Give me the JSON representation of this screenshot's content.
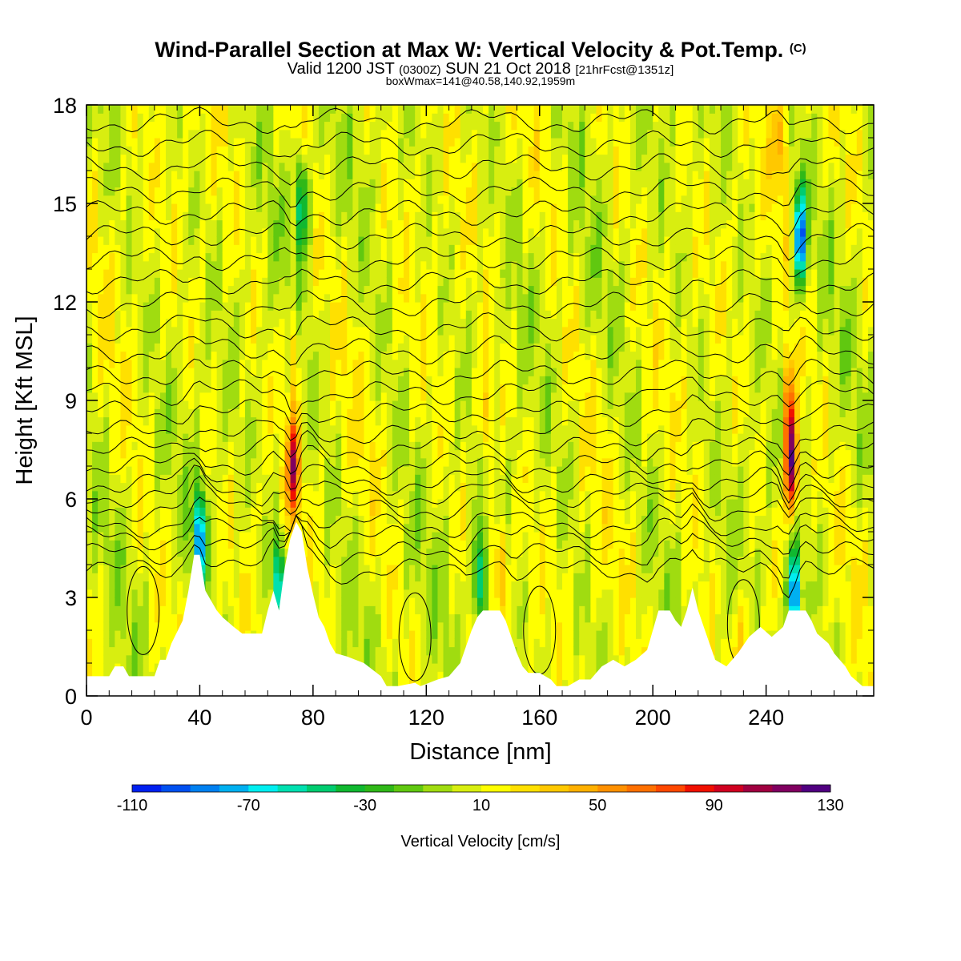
{
  "title": {
    "main": "Wind-Parallel Section at Max W: Vertical Velocity & Pot.Temp.",
    "copyright": "(C)",
    "line2_part1": "Valid 1200 JST",
    "line2_zulu": "(0300Z)",
    "line2_part2": "SUN 21 Oct 2018",
    "line2_fcst": "[21hrFcst@1351z]",
    "line3": "boxWmax=141@40.58,140.92,1959m"
  },
  "chart_data": {
    "type": "heatmap",
    "xlabel": "Distance [nm]",
    "ylabel": "Height [Kft MSL]",
    "xlim": [
      0,
      278
    ],
    "ylim": [
      0,
      18
    ],
    "x_ticks": [
      0,
      40,
      80,
      120,
      160,
      200,
      240
    ],
    "y_ticks": [
      0,
      3,
      6,
      9,
      12,
      15,
      18
    ],
    "colorbar": {
      "label": "Vertical Velocity [cm/s]",
      "min": -110,
      "max": 130,
      "step": 10,
      "tick_labels": [
        "-110",
        "-70",
        "-30",
        "10",
        "50",
        "90",
        "130"
      ],
      "colors": [
        "#0020f0",
        "#0050f0",
        "#0080f0",
        "#00b0f0",
        "#00eef0",
        "#00e0b0",
        "#00cc70",
        "#10b830",
        "#30b818",
        "#60c810",
        "#a0dc10",
        "#d8ee10",
        "#ffff00",
        "#ffe000",
        "#ffc800",
        "#ffb000",
        "#ff9000",
        "#ff7000",
        "#ff4800",
        "#f01000",
        "#d00020",
        "#a00040",
        "#800060",
        "#500080"
      ]
    },
    "terrain_kft": [
      [
        0,
        0.6
      ],
      [
        8,
        0.6
      ],
      [
        10,
        0.9
      ],
      [
        13,
        0.9
      ],
      [
        15,
        0.6
      ],
      [
        24,
        0.6
      ],
      [
        26,
        1.1
      ],
      [
        28,
        1.1
      ],
      [
        30,
        1.6
      ],
      [
        34,
        2.3
      ],
      [
        36,
        3.2
      ],
      [
        38,
        4.3
      ],
      [
        40,
        4.3
      ],
      [
        42,
        3.2
      ],
      [
        44,
        2.9
      ],
      [
        46,
        2.6
      ],
      [
        48,
        2.4
      ],
      [
        52,
        2.1
      ],
      [
        55,
        1.9
      ],
      [
        62,
        1.9
      ],
      [
        64,
        2.6
      ],
      [
        66,
        3.2
      ],
      [
        68,
        2.6
      ],
      [
        70,
        3.9
      ],
      [
        72,
        4.8
      ],
      [
        74,
        5.3
      ],
      [
        76,
        5.0
      ],
      [
        78,
        3.9
      ],
      [
        80,
        3.1
      ],
      [
        82,
        2.4
      ],
      [
        84,
        2.1
      ],
      [
        86,
        1.6
      ],
      [
        88,
        1.3
      ],
      [
        92,
        1.2
      ],
      [
        98,
        1.0
      ],
      [
        104,
        0.6
      ],
      [
        106,
        0.3
      ],
      [
        110,
        0.3
      ],
      [
        116,
        0.4
      ],
      [
        118,
        0.3
      ],
      [
        124,
        0.5
      ],
      [
        128,
        0.6
      ],
      [
        132,
        1.0
      ],
      [
        134,
        1.5
      ],
      [
        136,
        2.0
      ],
      [
        138,
        2.4
      ],
      [
        140,
        2.6
      ],
      [
        146,
        2.6
      ],
      [
        148,
        2.3
      ],
      [
        150,
        1.8
      ],
      [
        152,
        1.3
      ],
      [
        154,
        0.9
      ],
      [
        156,
        0.7
      ],
      [
        160,
        0.7
      ],
      [
        164,
        0.5
      ],
      [
        166,
        0.3
      ],
      [
        170,
        0.3
      ],
      [
        174,
        0.5
      ],
      [
        178,
        0.5
      ],
      [
        182,
        0.9
      ],
      [
        186,
        1.1
      ],
      [
        190,
        0.9
      ],
      [
        194,
        1.1
      ],
      [
        198,
        1.4
      ],
      [
        200,
        2.0
      ],
      [
        202,
        2.6
      ],
      [
        206,
        2.6
      ],
      [
        208,
        2.3
      ],
      [
        210,
        2.1
      ],
      [
        212,
        2.6
      ],
      [
        214,
        3.3
      ],
      [
        216,
        2.6
      ],
      [
        218,
        2.1
      ],
      [
        220,
        1.6
      ],
      [
        222,
        1.1
      ],
      [
        226,
        0.9
      ],
      [
        230,
        1.3
      ],
      [
        234,
        1.8
      ],
      [
        238,
        2.1
      ],
      [
        242,
        1.8
      ],
      [
        246,
        2.1
      ],
      [
        248,
        2.6
      ],
      [
        254,
        2.6
      ],
      [
        256,
        2.3
      ],
      [
        258,
        1.9
      ],
      [
        262,
        1.6
      ],
      [
        264,
        1.3
      ],
      [
        268,
        0.9
      ],
      [
        270,
        0.6
      ],
      [
        274,
        0.3
      ],
      [
        278,
        0.3
      ]
    ],
    "vertical_velocity_features": [
      {
        "x": 73,
        "y": 7.0,
        "value": 95
      },
      {
        "x": 73,
        "y": 10.5,
        "value": 40
      },
      {
        "x": 40,
        "y": 4.8,
        "value": -85
      },
      {
        "x": 68,
        "y": 3.3,
        "value": -70
      },
      {
        "x": 76,
        "y": 15,
        "value": -55
      },
      {
        "x": 146,
        "y": 4.0,
        "value": 50
      },
      {
        "x": 141,
        "y": 8.5,
        "value": 45
      },
      {
        "x": 139,
        "y": 3.5,
        "value": -60
      },
      {
        "x": 249,
        "y": 7.0,
        "value": 120
      },
      {
        "x": 248,
        "y": 9.0,
        "value": 70
      },
      {
        "x": 252,
        "y": 14.0,
        "value": -100
      },
      {
        "x": 250,
        "y": 3.0,
        "value": -100
      },
      {
        "x": 245,
        "y": 17.0,
        "value": 45
      },
      {
        "x": 186,
        "y": 16.5,
        "value": 15
      },
      {
        "x": 232,
        "y": 1.5,
        "value": 40
      }
    ],
    "pot_temp_contours_kft": [
      {
        "base": 3.8
      },
      {
        "base": 4.3
      },
      {
        "base": 4.8
      },
      {
        "base": 5.2
      },
      {
        "base": 5.7
      },
      {
        "base": 6.1
      },
      {
        "base": 6.5
      },
      {
        "base": 7.0
      },
      {
        "base": 7.5
      },
      {
        "base": 8.0
      },
      {
        "base": 8.6
      },
      {
        "base": 9.2
      },
      {
        "base": 9.8
      },
      {
        "base": 10.5
      },
      {
        "base": 11.2
      },
      {
        "base": 11.9
      },
      {
        "base": 12.6
      },
      {
        "base": 13.3
      },
      {
        "base": 14.0
      },
      {
        "base": 14.7
      },
      {
        "base": 15.4
      },
      {
        "base": 16.1
      },
      {
        "base": 16.8
      },
      {
        "base": 17.5
      }
    ]
  }
}
